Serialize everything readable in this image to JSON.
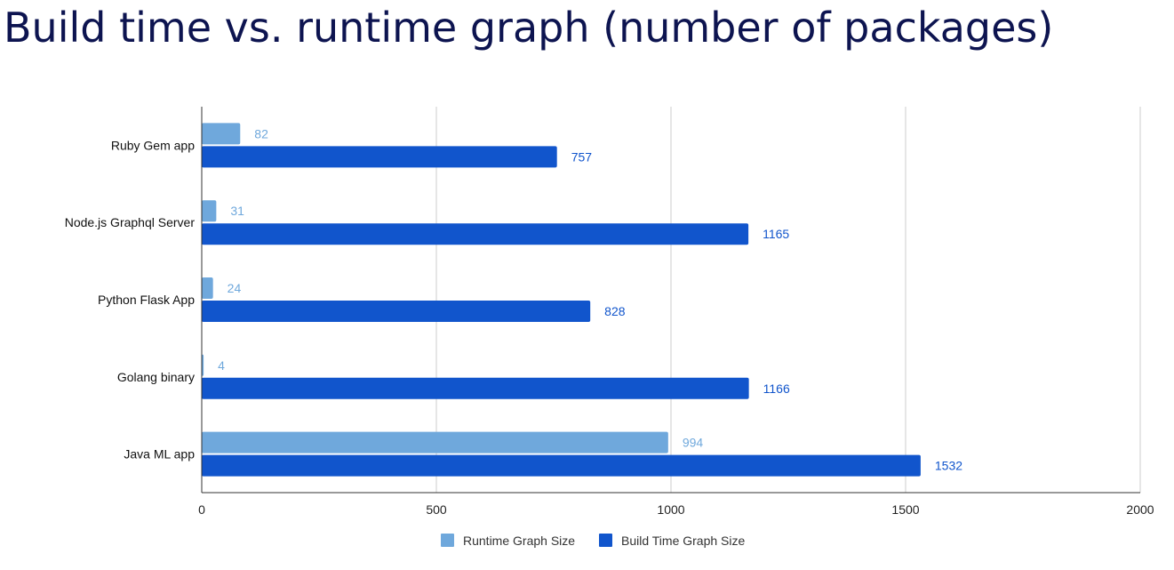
{
  "title": "Build time vs. runtime graph (number of packages)",
  "chart_data": {
    "type": "bar",
    "orientation": "horizontal",
    "categories": [
      "Ruby Gem app",
      "Node.js Graphql Server",
      "Python Flask App",
      "Golang binary",
      "Java ML app"
    ],
    "series": [
      {
        "name": "Runtime Graph Size",
        "values": [
          82,
          31,
          24,
          4,
          994
        ],
        "color": "#6fa8dc"
      },
      {
        "name": "Build Time Graph Size",
        "values": [
          757,
          1165,
          828,
          1166,
          1532
        ],
        "color": "#1155cc"
      }
    ],
    "xlim": [
      0,
      2000
    ],
    "xticks": [
      "0",
      "500",
      "1000",
      "1500",
      "2000"
    ],
    "grid": true,
    "legend_position": "bottom",
    "data_labels": true
  }
}
